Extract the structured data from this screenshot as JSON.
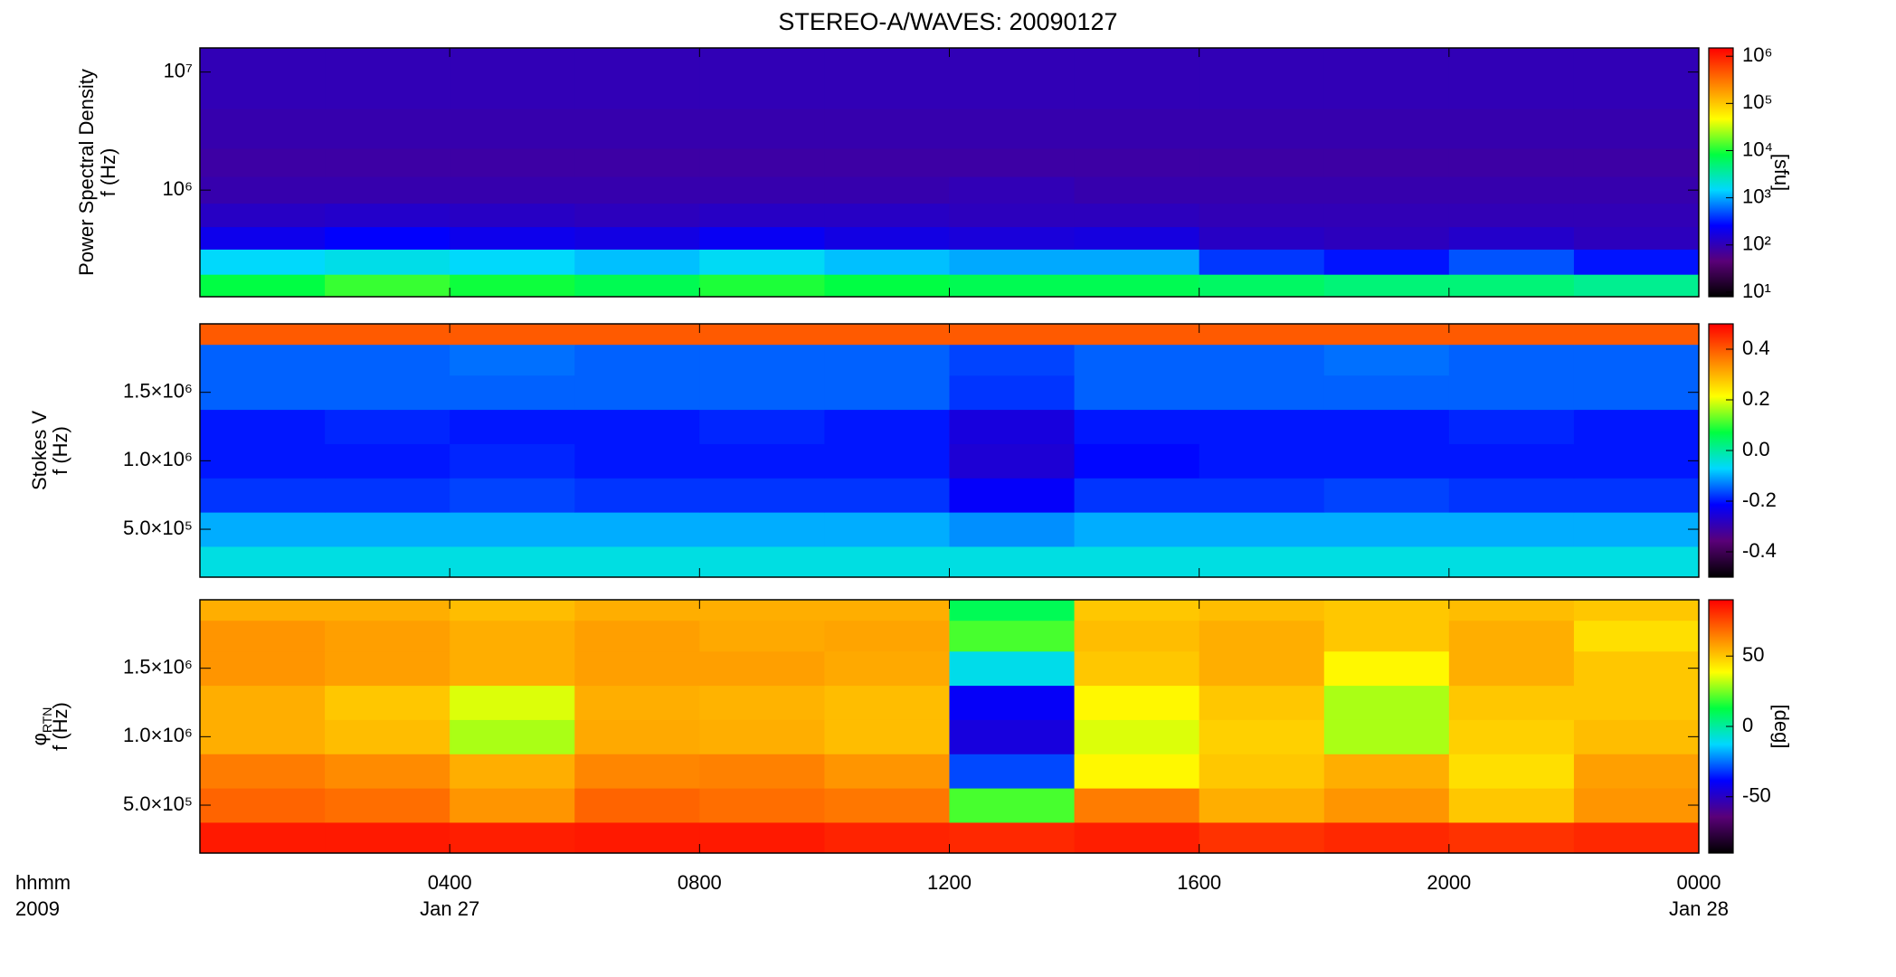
{
  "chart_data": [
    {
      "type": "heatmap",
      "title": "STEREO-A/WAVES: 20090127",
      "ylabel": [
        "Power Spectral Density",
        "f (Hz)"
      ],
      "ylog": true,
      "ylim": [
        125000,
        16000000
      ],
      "yticks": [
        {
          "value": 1000000,
          "label": "10⁶"
        },
        {
          "value": 10000000,
          "label": "10⁷"
        }
      ],
      "xlim": [
        0,
        24
      ],
      "x": [
        1,
        3,
        5,
        7,
        9,
        11,
        13,
        15,
        17,
        19,
        21,
        23
      ],
      "y": [
        150000,
        250000,
        400000,
        600000,
        1000000,
        1700000,
        3000000,
        8000000
      ],
      "z": [
        [
          8000,
          12000,
          9000,
          7000,
          10000,
          8000,
          7000,
          7000,
          6000,
          5000,
          5000,
          4000
        ],
        [
          1500,
          1800,
          1500,
          1200,
          1600,
          1200,
          1000,
          1000,
          400,
          300,
          500,
          300
        ],
        [
          200,
          250,
          200,
          180,
          220,
          180,
          160,
          170,
          120,
          110,
          130,
          110
        ],
        [
          120,
          130,
          120,
          110,
          120,
          120,
          110,
          110,
          100,
          100,
          100,
          100
        ],
        [
          90,
          90,
          90,
          90,
          90,
          90,
          100,
          90,
          90,
          90,
          90,
          90
        ],
        [
          80,
          80,
          80,
          80,
          80,
          80,
          80,
          80,
          80,
          80,
          80,
          80
        ],
        [
          90,
          90,
          90,
          90,
          90,
          90,
          90,
          90,
          90,
          90,
          90,
          90
        ],
        [
          100,
          100,
          100,
          100,
          100,
          100,
          100,
          100,
          100,
          100,
          100,
          100
        ]
      ],
      "clog": true,
      "clim": [
        8,
        1500000
      ],
      "cticks": [
        {
          "value": 10,
          "label": "10¹"
        },
        {
          "value": 100,
          "label": "10²"
        },
        {
          "value": 1000,
          "label": "10³"
        },
        {
          "value": 10000,
          "label": "10⁴"
        },
        {
          "value": 100000,
          "label": "10⁵"
        },
        {
          "value": 1000000,
          "label": "10⁶"
        }
      ],
      "clabel": "[sfu]",
      "colormap": [
        "#000000",
        "#5a0078",
        "#0000ff",
        "#00d8ff",
        "#00ff40",
        "#ffff00",
        "#ff8000",
        "#ff0000"
      ]
    },
    {
      "type": "heatmap",
      "ylabel": [
        "Stokes V",
        "f (Hz)"
      ],
      "ylog": false,
      "ylim": [
        150000,
        2000000
      ],
      "yticks": [
        {
          "value": 500000,
          "label": "5.0×10⁵"
        },
        {
          "value": 1000000,
          "label": "1.0×10⁶"
        },
        {
          "value": 1500000,
          "label": "1.5×10⁶"
        }
      ],
      "xlim": [
        0,
        24
      ],
      "x": [
        1,
        3,
        5,
        7,
        9,
        11,
        13,
        15,
        17,
        19,
        21,
        23
      ],
      "y": [
        250000,
        500000,
        750000,
        1000000,
        1250000,
        1500000,
        1750000,
        1950000
      ],
      "z": [
        [
          -0.05,
          -0.05,
          -0.05,
          -0.05,
          -0.05,
          -0.05,
          -0.05,
          -0.05,
          -0.05,
          -0.05,
          -0.05,
          -0.05
        ],
        [
          -0.1,
          -0.1,
          -0.1,
          -0.1,
          -0.1,
          -0.1,
          -0.12,
          -0.1,
          -0.1,
          -0.1,
          -0.1,
          -0.1
        ],
        [
          -0.18,
          -0.18,
          -0.17,
          -0.18,
          -0.18,
          -0.18,
          -0.22,
          -0.18,
          -0.18,
          -0.17,
          -0.18,
          -0.18
        ],
        [
          -0.2,
          -0.2,
          -0.19,
          -0.2,
          -0.2,
          -0.2,
          -0.26,
          -0.21,
          -0.2,
          -0.2,
          -0.2,
          -0.2
        ],
        [
          -0.2,
          -0.19,
          -0.2,
          -0.2,
          -0.19,
          -0.2,
          -0.25,
          -0.2,
          -0.2,
          -0.2,
          -0.19,
          -0.2
        ],
        [
          -0.15,
          -0.15,
          -0.15,
          -0.15,
          -0.15,
          -0.15,
          -0.18,
          -0.15,
          -0.15,
          -0.15,
          -0.15,
          -0.15
        ],
        [
          -0.15,
          -0.15,
          -0.14,
          -0.15,
          -0.15,
          -0.15,
          -0.17,
          -0.15,
          -0.15,
          -0.14,
          -0.15,
          -0.15
        ],
        [
          0.4,
          0.4,
          0.4,
          0.4,
          0.4,
          0.4,
          0.4,
          0.4,
          0.4,
          0.4,
          0.4,
          0.4
        ]
      ],
      "clog": false,
      "clim": [
        -0.5,
        0.5
      ],
      "cticks": [
        -0.4,
        -0.2,
        {
          "value": 0,
          "label": "0.0"
        },
        0.2,
        0.4
      ],
      "colormap": [
        "#000000",
        "#5a0078",
        "#0000ff",
        "#00d8ff",
        "#00ff40",
        "#ffff00",
        "#ff8000",
        "#ff0000"
      ]
    },
    {
      "type": "heatmap",
      "ylabel": [
        "φ",
        "f (Hz)"
      ],
      "ylabel_sub": "RTN",
      "ylog": false,
      "ylim": [
        150000,
        2000000
      ],
      "yticks": [
        {
          "value": 500000,
          "label": "5.0×10⁵"
        },
        {
          "value": 1000000,
          "label": "1.0×10⁶"
        },
        {
          "value": 1500000,
          "label": "1.5×10⁶"
        }
      ],
      "xlim": [
        0,
        24
      ],
      "x": [
        1,
        3,
        5,
        7,
        9,
        11,
        13,
        15,
        17,
        19,
        21,
        23
      ],
      "xticks": [
        {
          "value": 4,
          "label": "0400"
        },
        {
          "value": 8,
          "label": "0800"
        },
        {
          "value": 12,
          "label": "1200"
        },
        {
          "value": 16,
          "label": "1600"
        },
        {
          "value": 20,
          "label": "2000"
        },
        {
          "value": 24,
          "label": "0000"
        }
      ],
      "xtick_dates": [
        {
          "value": 4,
          "label": "Jan 27"
        },
        {
          "value": 24,
          "label": "Jan 28"
        }
      ],
      "xaxis_label": [
        "hhmm",
        "2009"
      ],
      "y": [
        250000,
        500000,
        750000,
        1000000,
        1250000,
        1500000,
        1750000,
        1950000
      ],
      "z": [
        [
          85,
          85,
          84,
          85,
          85,
          83,
          82,
          84,
          80,
          82,
          80,
          82
        ],
        [
          70,
          68,
          60,
          70,
          68,
          66,
          20,
          65,
          55,
          60,
          50,
          60
        ],
        [
          65,
          62,
          55,
          63,
          64,
          60,
          -30,
          40,
          50,
          55,
          45,
          58
        ],
        [
          55,
          52,
          30,
          56,
          55,
          52,
          -45,
          35,
          48,
          30,
          48,
          52
        ],
        [
          55,
          50,
          35,
          55,
          54,
          52,
          -40,
          40,
          50,
          30,
          50,
          50
        ],
        [
          60,
          58,
          55,
          58,
          58,
          56,
          -10,
          50,
          55,
          40,
          55,
          50
        ],
        [
          60,
          58,
          55,
          58,
          56,
          57,
          20,
          52,
          55,
          50,
          55,
          45
        ],
        [
          55,
          55,
          52,
          55,
          55,
          55,
          10,
          50,
          52,
          50,
          52,
          50
        ]
      ],
      "clog": false,
      "clim": [
        -90,
        90
      ],
      "cticks": [
        -50,
        0,
        50
      ],
      "clabel": "[deg]",
      "colormap": [
        "#000000",
        "#5a0078",
        "#0000ff",
        "#00d8ff",
        "#00ff40",
        "#ffff00",
        "#ff8000",
        "#ff0000"
      ]
    }
  ]
}
